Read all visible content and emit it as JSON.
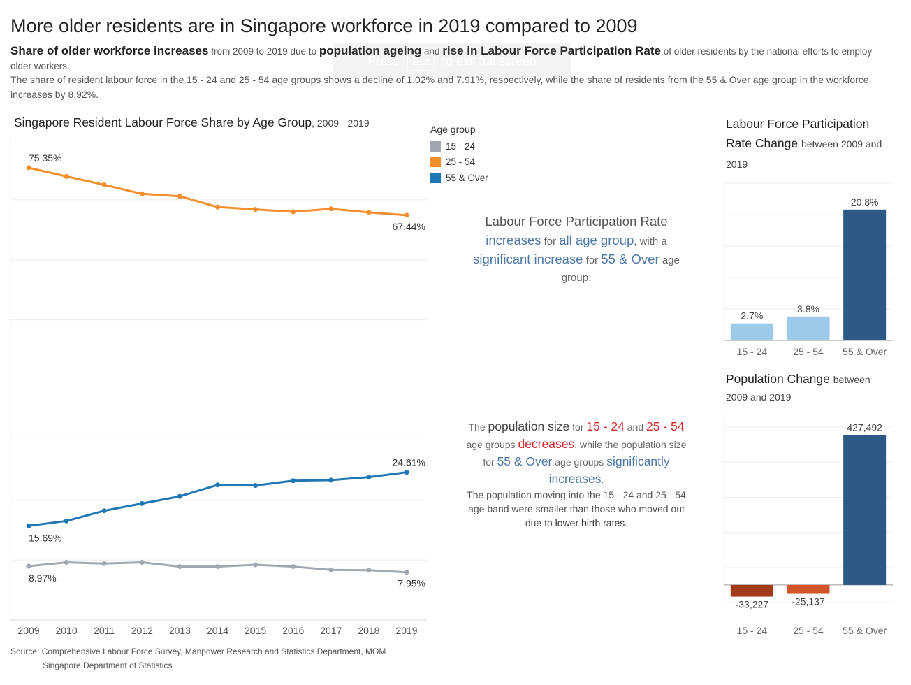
{
  "header": {
    "title": "More older residents are in Singapore workforce in 2019 compared to 2009",
    "subtitle_b1": "Share of older workforce increases",
    "subtitle_t1": "from 2009 to 2019 due to",
    "subtitle_b2": "population ageing",
    "subtitle_t2": "and",
    "subtitle_b3": "rise in Labour Force Participation Rate",
    "subtitle_t3": "of older residents by the national efforts to employ older workers.",
    "description": "The share of resident labour force in the 15 - 24 and 25 - 54 age groups shows a decline of 1.02% and 7.91%, respectively, while the share of residents from the 55 & Over age group in the workforce increases by 8.92%."
  },
  "overlay": {
    "press": "Press",
    "key": "Esc",
    "rest": "to exit full screen"
  },
  "legend": {
    "title": "Age group",
    "items": [
      {
        "label": "15 - 24",
        "color": "#a0a7b1"
      },
      {
        "label": "25 - 54",
        "color": "#f28e2b"
      },
      {
        "label": "55 & Over",
        "color": "#1f77b4"
      }
    ]
  },
  "middle": {
    "lfpr_l1": "Labour Force Participation Rate",
    "lfpr_w1": "increases",
    "lfpr_w2": "for",
    "lfpr_w3": "all age group",
    "lfpr_w4": ", with a",
    "lfpr_w5": "significant increase",
    "lfpr_w6": "for",
    "lfpr_w7": "55 & Over",
    "lfpr_w8": "age group.",
    "pop_w1": "The",
    "pop_w2": "population size",
    "pop_w3": "for",
    "pop_w4": "15 - 24",
    "pop_w5": "and",
    "pop_w6": "25 - 54",
    "pop_w7": "age groups",
    "pop_w8": "decreases",
    "pop_w9": ",",
    "pop_w10": "while the population size for",
    "pop_w11": "55 & Over",
    "pop_w12": "age groups",
    "pop_w13": "significantly increases",
    "pop_w14": ".",
    "pop_w15": "The population moving into the 15 - 24 and 25 - 54 age band were smaller than those who moved out due to",
    "pop_w16": "lower birth rates",
    "pop_w17": "."
  },
  "right_titles": {
    "lfpr_main": "Labour Force Participation Rate Change",
    "lfpr_sub": "between 2009 and 2019",
    "pop_main": "Population Change",
    "pop_sub": "between 2009 and 2019"
  },
  "source": {
    "line1": "Source: Comprehensive Labour Force Survey, Manpower Research and Statistics Department, MOM",
    "line2": "Singapore Department of Statistics"
  },
  "chart_data": [
    {
      "type": "line",
      "title": "Singapore Resident Labour Force Share by Age Group",
      "subtitle": ", 2009 - 2019",
      "x": [
        "2009",
        "2010",
        "2011",
        "2012",
        "2013",
        "2014",
        "2015",
        "2016",
        "2017",
        "2018",
        "2019"
      ],
      "ylim": [
        0,
        80
      ],
      "grid": true,
      "legend_placement": "top-right",
      "series": [
        {
          "name": "25 - 54",
          "color": "#f28e2b",
          "values": [
            75.35,
            73.9,
            72.5,
            71.0,
            70.6,
            68.8,
            68.4,
            68.0,
            68.5,
            67.9,
            67.44
          ],
          "label_first": "75.35%",
          "label_last": "67.44%"
        },
        {
          "name": "55 & Over",
          "color": "#1f77b4",
          "values": [
            15.69,
            16.5,
            18.2,
            19.4,
            20.6,
            22.5,
            22.4,
            23.2,
            23.3,
            23.8,
            24.61
          ],
          "label_first": "15.69%",
          "label_last": "24.61%"
        },
        {
          "name": "15 - 24",
          "color": "#a0a7b1",
          "values": [
            8.97,
            9.6,
            9.4,
            9.6,
            8.9,
            8.9,
            9.2,
            8.9,
            8.35,
            8.3,
            7.95
          ],
          "label_first": "8.97%",
          "label_last": "7.95%"
        }
      ]
    },
    {
      "type": "bar",
      "title": "Labour Force Participation Rate Change between 2009 and 2019",
      "categories": [
        "15 - 24",
        "25 - 54",
        "55 & Over"
      ],
      "values": [
        2.7,
        3.8,
        20.8
      ],
      "labels": [
        "2.7%",
        "3.8%",
        "20.8%"
      ],
      "colors": [
        "#9ecae9",
        "#9ecae9",
        "#2c5985"
      ],
      "ylim": [
        0,
        25
      ]
    },
    {
      "type": "bar",
      "title": "Population Change between 2009 and 2019",
      "categories": [
        "15 - 24",
        "25 - 54",
        "55 & Over"
      ],
      "values": [
        -33227,
        -25137,
        427492
      ],
      "labels": [
        "-33,227",
        "-25,137",
        "427,492"
      ],
      "colors": [
        "#a23a1c",
        "#d1542a",
        "#2c5985"
      ],
      "ylim": [
        -50000,
        500000
      ]
    }
  ]
}
